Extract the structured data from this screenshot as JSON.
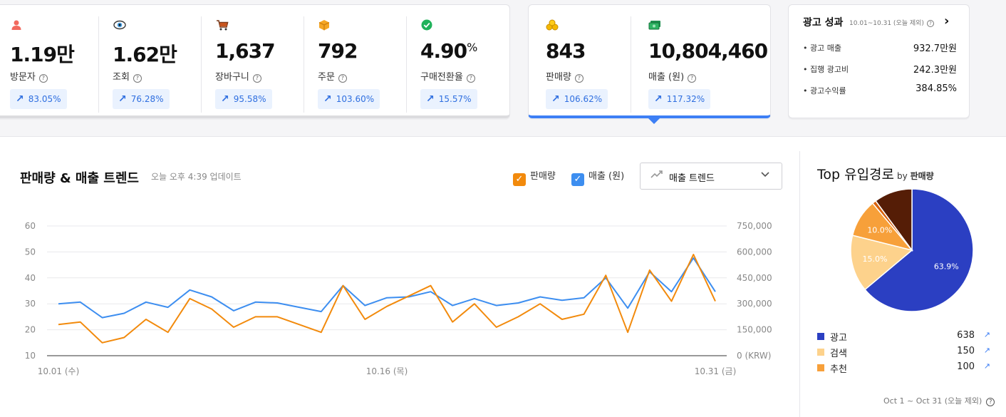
{
  "metrics": [
    {
      "icon": "person-icon",
      "value": "1.19만",
      "label": "방문자",
      "change": "83.05%"
    },
    {
      "icon": "eye-icon",
      "value": "1.62만",
      "label": "조회",
      "change": "76.28%"
    },
    {
      "icon": "cart-icon",
      "value": "1,637",
      "label": "장바구니",
      "change": "95.58%"
    },
    {
      "icon": "box-icon",
      "value": "792",
      "label": "주문",
      "change": "103.60%"
    },
    {
      "icon": "check-circle-icon",
      "value": "4.90",
      "unit": "%",
      "label": "구매전환율",
      "change": "15.57%"
    }
  ],
  "sales_metrics": [
    {
      "icon": "coins-icon",
      "value": "843",
      "label": "판매량",
      "change": "106.62%"
    },
    {
      "icon": "money-icon",
      "value": "10,804,460",
      "label": "매출 (원)",
      "change": "117.32%"
    }
  ],
  "ad_performance": {
    "title": "광고 성과",
    "period": "10.01~10.31 (오늘 제외)",
    "rows": [
      {
        "label": "광고 매출",
        "value": "932.7만원"
      },
      {
        "label": "집행 광고비",
        "value": "242.3만원"
      },
      {
        "label": "광고수익률",
        "value": "384.85%"
      }
    ]
  },
  "trend": {
    "title": "판매량 & 매출 트렌드",
    "updated": "오늘 오후 4:39 업데이트",
    "checkbox_sales_qty": "판매량",
    "checkbox_revenue": "매출 (원)",
    "dropdown_value": "매출 트렌드"
  },
  "chart_data": {
    "type": "line",
    "x_ticks": [
      "10.01 (수)",
      "10.16 (목)",
      "10.31 (금)"
    ],
    "y_left_ticks": [
      "60",
      "50",
      "40",
      "30",
      "20",
      "10"
    ],
    "y_right_ticks": [
      "750,000",
      "600,000",
      "450,000",
      "300,000",
      "150,000",
      "0 (KRW)"
    ],
    "y_left_range": [
      10,
      60
    ],
    "y_right_range": [
      0,
      750000
    ],
    "series": [
      {
        "name": "판매량",
        "axis": "left",
        "color": "#f28a0c",
        "values": [
          22,
          23,
          15,
          17,
          24,
          19,
          32,
          28,
          21,
          25,
          25,
          22,
          19,
          37,
          24,
          29,
          33,
          37,
          23,
          30,
          21,
          25,
          30,
          24,
          26,
          41,
          19,
          43,
          31,
          49,
          31
        ]
      },
      {
        "name": "매출 (원)",
        "axis": "right",
        "color": "#3d8ef0",
        "values": [
          300000,
          310000,
          220000,
          245000,
          310000,
          280000,
          380000,
          340000,
          260000,
          310000,
          305000,
          280000,
          255000,
          405000,
          290000,
          335000,
          340000,
          370000,
          290000,
          330000,
          290000,
          305000,
          340000,
          320000,
          335000,
          450000,
          275000,
          485000,
          370000,
          565000,
          370000
        ]
      }
    ],
    "grid": true
  },
  "top_sources": {
    "title": "Top 유입경로",
    "by_prefix": "by",
    "by_metric": "판매량",
    "pie": [
      {
        "name": "광고",
        "value": 638,
        "percent": 63.9,
        "label": "63.9%",
        "color": "#2b3fc2"
      },
      {
        "name": "검색",
        "value": 150,
        "percent": 15.0,
        "label": "15.0%",
        "color": "#fdd28c"
      },
      {
        "name": "추천",
        "value": 100,
        "percent": 10.0,
        "label": "10.0%",
        "color": "#f7a03a"
      },
      {
        "name": "",
        "value": 10,
        "percent": 1.0,
        "label": "",
        "color": "#d9620d"
      },
      {
        "name": "",
        "value": 101,
        "percent": 10.1,
        "label": "",
        "color": "#551d06"
      }
    ],
    "footnote": "Oct 1 ~ Oct 31 (오늘 제외)"
  }
}
